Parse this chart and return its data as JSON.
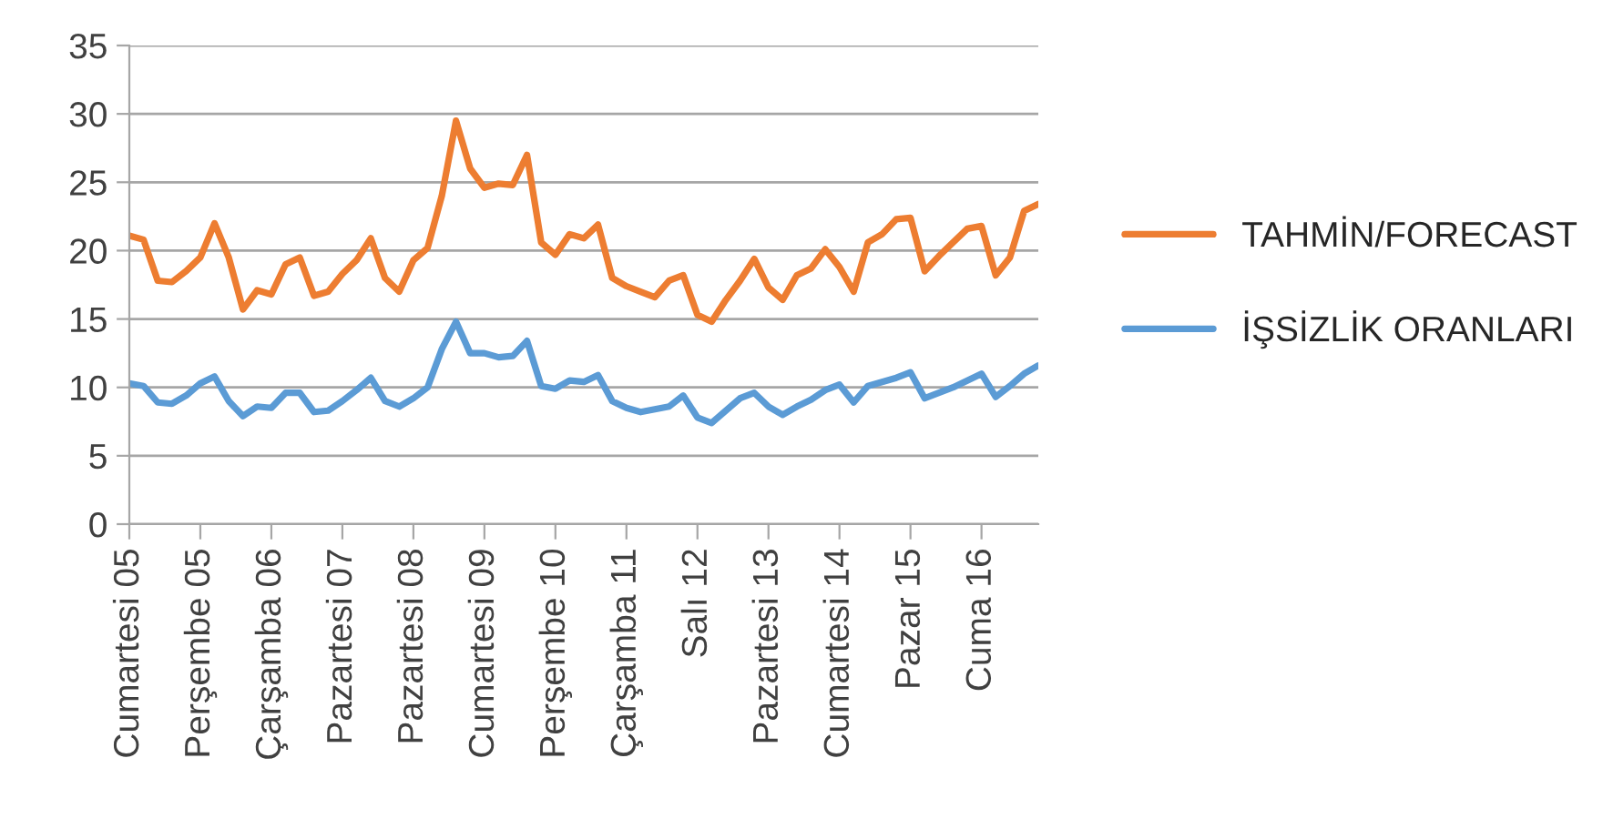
{
  "chart_data": {
    "type": "line",
    "categories": [
      "Cumartesi 05",
      null,
      null,
      null,
      null,
      "Perşembe 05",
      null,
      null,
      null,
      null,
      "Çarşamba 06",
      null,
      null,
      null,
      null,
      "Pazartesi 07",
      null,
      null,
      null,
      null,
      "Pazartesi 08",
      null,
      null,
      null,
      null,
      "Cumartesi 09",
      null,
      null,
      null,
      null,
      "Perşembe 10",
      null,
      null,
      null,
      null,
      "Çarşamba 11",
      null,
      null,
      null,
      null,
      "Salı 12",
      null,
      null,
      null,
      null,
      "Pazartesi 13",
      null,
      null,
      null,
      null,
      "Cumartesi 14",
      null,
      null,
      null,
      null,
      "Pazar 15",
      null,
      null,
      null,
      null,
      "Cuma 16",
      null,
      null,
      null,
      null
    ],
    "series": [
      {
        "name": "TAHMİN/FORECAST",
        "color": "#ed7d31",
        "values": [
          21.1,
          20.8,
          17.8,
          17.7,
          18.5,
          19.5,
          22.0,
          19.5,
          15.7,
          17.1,
          16.8,
          19.0,
          19.5,
          16.7,
          17.0,
          18.3,
          19.3,
          20.9,
          18.0,
          17.0,
          19.3,
          20.2,
          24.0,
          29.5,
          26.0,
          24.6,
          24.9,
          24.8,
          27.0,
          20.6,
          19.7,
          21.2,
          20.9,
          21.9,
          18.0,
          17.4,
          17.0,
          16.6,
          17.8,
          18.2,
          15.3,
          14.8,
          16.4,
          17.8,
          19.4,
          17.3,
          16.4,
          18.2,
          18.7,
          20.1,
          18.8,
          17.0,
          20.6,
          21.2,
          22.3,
          22.4,
          18.5,
          19.6,
          20.6,
          21.6,
          21.8,
          18.2,
          19.5,
          22.9,
          23.4
        ]
      },
      {
        "name": "İŞSİZLİK ORANLARI",
        "color": "#5b9bd5",
        "values": [
          10.3,
          10.1,
          8.9,
          8.8,
          9.4,
          10.3,
          10.8,
          9.0,
          7.9,
          8.6,
          8.5,
          9.6,
          9.6,
          8.2,
          8.3,
          9.0,
          9.8,
          10.7,
          9.0,
          8.6,
          9.2,
          10.0,
          12.8,
          14.8,
          12.5,
          12.5,
          12.2,
          12.3,
          13.4,
          10.1,
          9.9,
          10.5,
          10.4,
          10.9,
          9.0,
          8.5,
          8.2,
          8.4,
          8.6,
          9.4,
          7.8,
          7.4,
          8.3,
          9.2,
          9.6,
          8.6,
          8.0,
          8.6,
          9.1,
          9.8,
          10.2,
          8.9,
          10.1,
          10.4,
          10.7,
          11.1,
          9.2,
          9.6,
          10.0,
          10.5,
          11.0,
          9.3,
          10.1,
          11.0,
          11.6
        ]
      }
    ],
    "ylim": [
      0,
      35
    ],
    "yticks": [
      0,
      5,
      10,
      15,
      20,
      25,
      30,
      35
    ],
    "grid": "y",
    "legend": "right",
    "marker": "none",
    "line_style": "solid"
  }
}
